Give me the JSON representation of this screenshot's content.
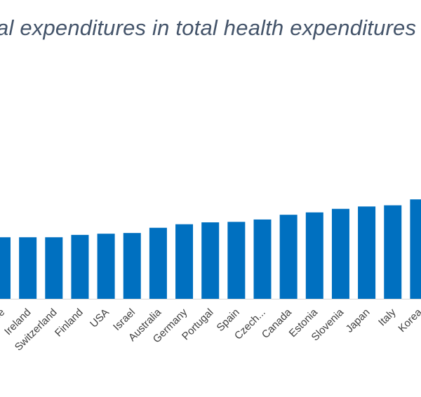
{
  "chart_data": {
    "type": "bar",
    "title": "al expenditures in total health expenditures",
    "categories": [
      "ce",
      "Ireland",
      "Switzerland",
      "Finland",
      "USA",
      "Israel",
      "Australia",
      "Germany",
      "Portugal",
      "Spain",
      "Czech...",
      "Canada",
      "Estonia",
      "Slovenia",
      "Japan",
      "Italy",
      "Korea"
    ],
    "values": [
      26.0,
      26.0,
      26.0,
      27.0,
      27.5,
      27.8,
      30.0,
      31.5,
      32.3,
      32.5,
      33.5,
      35.5,
      36.5,
      38.0,
      39.0,
      39.5,
      42.0
    ],
    "ylim": [
      0,
      112
    ],
    "grid": false,
    "bar_color": "#0070c0",
    "axis_color": "#d9d9d9",
    "xlabel": "",
    "ylabel": ""
  }
}
